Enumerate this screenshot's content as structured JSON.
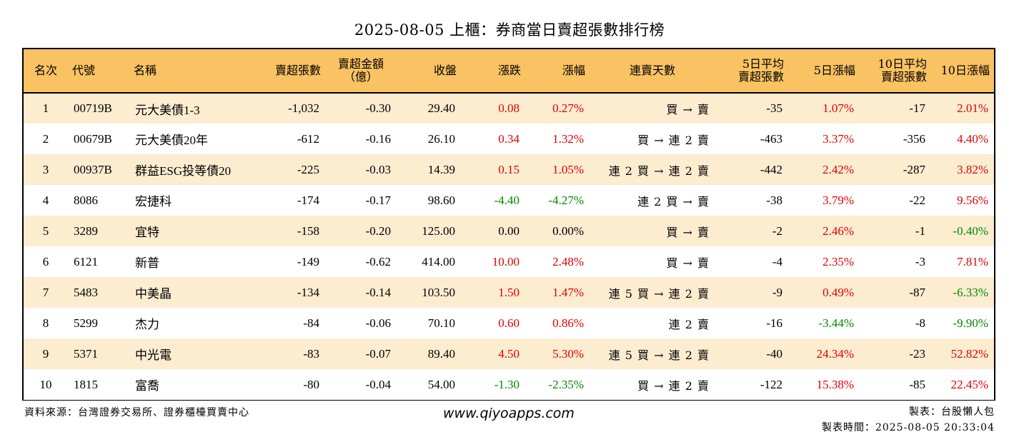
{
  "title": "2025-08-05 上櫃：券商當日賣超張數排行榜",
  "columns": {
    "rank": "名次",
    "code": "代號",
    "name": "名稱",
    "sell_lots": "賣超張數",
    "sell_amount_l1": "賣超金額",
    "sell_amount_l2": "（億）",
    "close": "收盤",
    "change": "漲跌",
    "change_pct": "漲幅",
    "days": "連賣天數",
    "avg5_l1": "5日平均",
    "avg5_l2": "賣超張數",
    "pct5": "5日漲幅",
    "avg10_l1": "10日平均",
    "avg10_l2": "賣超張數",
    "pct10": "10日漲幅"
  },
  "colors": {
    "header_bg": "#f9c262",
    "stripe_bg": "#fcecd0",
    "up": "#e00000",
    "down": "#008800",
    "flat": "#000000"
  },
  "rows": [
    {
      "rank": "1",
      "code": "00719B",
      "name": "元大美債1-3",
      "sell_lots": "-1,032",
      "sell_amount": "-0.30",
      "close": "29.40",
      "change": "0.08",
      "change_pct": "0.27%",
      "change_dir": "up",
      "days": "買 → 賣",
      "avg5": "-35",
      "pct5": "1.07%",
      "pct5_dir": "up",
      "avg10": "-17",
      "pct10": "2.01%",
      "pct10_dir": "up"
    },
    {
      "rank": "2",
      "code": "00679B",
      "name": "元大美債20年",
      "sell_lots": "-612",
      "sell_amount": "-0.16",
      "close": "26.10",
      "change": "0.34",
      "change_pct": "1.32%",
      "change_dir": "up",
      "days": "買 → 連 2 賣",
      "avg5": "-463",
      "pct5": "3.37%",
      "pct5_dir": "up",
      "avg10": "-356",
      "pct10": "4.40%",
      "pct10_dir": "up"
    },
    {
      "rank": "3",
      "code": "00937B",
      "name": "群益ESG投等債20",
      "sell_lots": "-225",
      "sell_amount": "-0.03",
      "close": "14.39",
      "change": "0.15",
      "change_pct": "1.05%",
      "change_dir": "up",
      "days": "連 2 買 → 連 2 賣",
      "avg5": "-442",
      "pct5": "2.42%",
      "pct5_dir": "up",
      "avg10": "-287",
      "pct10": "3.82%",
      "pct10_dir": "up"
    },
    {
      "rank": "4",
      "code": "8086",
      "name": "宏捷科",
      "sell_lots": "-174",
      "sell_amount": "-0.17",
      "close": "98.60",
      "change": "-4.40",
      "change_pct": "-4.27%",
      "change_dir": "down",
      "days": "連 2 買 → 賣",
      "avg5": "-38",
      "pct5": "3.79%",
      "pct5_dir": "up",
      "avg10": "-22",
      "pct10": "9.56%",
      "pct10_dir": "up"
    },
    {
      "rank": "5",
      "code": "3289",
      "name": "宜特",
      "sell_lots": "-158",
      "sell_amount": "-0.20",
      "close": "125.00",
      "change": "0.00",
      "change_pct": "0.00%",
      "change_dir": "flat",
      "days": "買 → 賣",
      "avg5": "-2",
      "pct5": "2.46%",
      "pct5_dir": "up",
      "avg10": "-1",
      "pct10": "-0.40%",
      "pct10_dir": "down"
    },
    {
      "rank": "6",
      "code": "6121",
      "name": "新普",
      "sell_lots": "-149",
      "sell_amount": "-0.62",
      "close": "414.00",
      "change": "10.00",
      "change_pct": "2.48%",
      "change_dir": "up",
      "days": "買 → 賣",
      "avg5": "-4",
      "pct5": "2.35%",
      "pct5_dir": "up",
      "avg10": "-3",
      "pct10": "7.81%",
      "pct10_dir": "up"
    },
    {
      "rank": "7",
      "code": "5483",
      "name": "中美晶",
      "sell_lots": "-134",
      "sell_amount": "-0.14",
      "close": "103.50",
      "change": "1.50",
      "change_pct": "1.47%",
      "change_dir": "up",
      "days": "連 5 買 → 連 2 賣",
      "avg5": "-9",
      "pct5": "0.49%",
      "pct5_dir": "up",
      "avg10": "-87",
      "pct10": "-6.33%",
      "pct10_dir": "down"
    },
    {
      "rank": "8",
      "code": "5299",
      "name": "杰力",
      "sell_lots": "-84",
      "sell_amount": "-0.06",
      "close": "70.10",
      "change": "0.60",
      "change_pct": "0.86%",
      "change_dir": "up",
      "days": "連 2 賣",
      "avg5": "-16",
      "pct5": "-3.44%",
      "pct5_dir": "down",
      "avg10": "-8",
      "pct10": "-9.90%",
      "pct10_dir": "down"
    },
    {
      "rank": "9",
      "code": "5371",
      "name": "中光電",
      "sell_lots": "-83",
      "sell_amount": "-0.07",
      "close": "89.40",
      "change": "4.50",
      "change_pct": "5.30%",
      "change_dir": "up",
      "days": "連 5 買 → 連 2 賣",
      "avg5": "-40",
      "pct5": "24.34%",
      "pct5_dir": "up",
      "avg10": "-23",
      "pct10": "52.82%",
      "pct10_dir": "up"
    },
    {
      "rank": "10",
      "code": "1815",
      "name": "富喬",
      "sell_lots": "-80",
      "sell_amount": "-0.04",
      "close": "54.00",
      "change": "-1.30",
      "change_pct": "-2.35%",
      "change_dir": "down",
      "days": "買 → 連 2 賣",
      "avg5": "-122",
      "pct5": "15.38%",
      "pct5_dir": "up",
      "avg10": "-85",
      "pct10": "22.45%",
      "pct10_dir": "up"
    }
  ],
  "footer": {
    "source": "資料來源：台灣證券交易所、證券櫃檯買賣中心",
    "website": "www.qiyoapps.com",
    "maker": "製表：台股懶人包",
    "made_time": "製表時間：2025-08-05 20:33:04"
  }
}
